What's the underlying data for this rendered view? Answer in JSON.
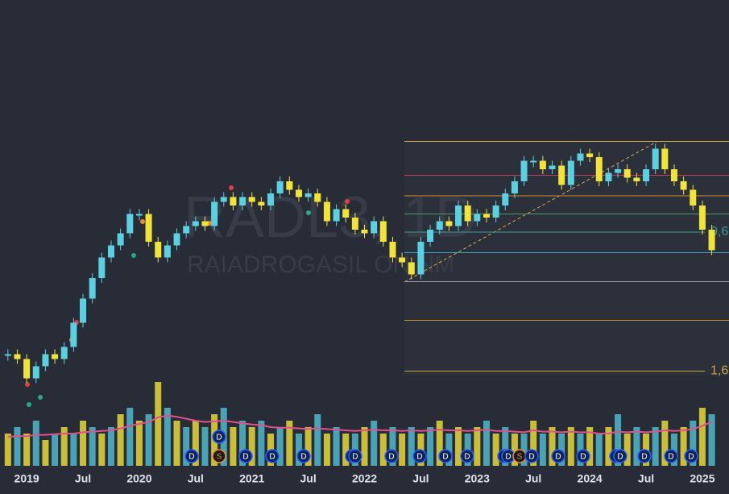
{
  "chart_data": {
    "type": "candle",
    "watermark": {
      "symbol": "RADL3, 1D",
      "name": "RAIADROGASIL ON NM"
    },
    "categories": [
      null,
      null,
      "2019",
      null,
      null,
      null,
      null,
      null,
      "Jul",
      null,
      null,
      null,
      null,
      null,
      "2020",
      null,
      null,
      null,
      null,
      null,
      "Jul",
      null,
      null,
      null,
      null,
      null,
      "2021",
      null,
      null,
      null,
      null,
      null,
      "Jul",
      null,
      null,
      null,
      null,
      null,
      "2022",
      null,
      null,
      null,
      null,
      null,
      "Jul",
      null,
      null,
      null,
      null,
      null,
      "2023",
      null,
      null,
      null,
      null,
      null,
      "Jul",
      null,
      null,
      null,
      null,
      null,
      "2024",
      null,
      null,
      null,
      null,
      null,
      "Jul",
      null,
      null,
      null,
      null,
      null,
      "2025",
      null
    ],
    "ylim": [
      0,
      40
    ],
    "series": [
      {
        "up_color": "#5ad0e0",
        "down_color": "#f2e33b",
        "values": [
          10.7,
          10.3,
          8.7,
          9.7,
          10.7,
          10.3,
          11.3,
          13.3,
          15.3,
          17,
          18.7,
          19.7,
          20.7,
          22.3,
          22.3,
          20,
          18.7,
          19.7,
          20.7,
          21.3,
          21.7,
          21.3,
          23.3,
          23.7,
          23,
          23.7,
          23.3,
          23,
          24,
          25,
          24.3,
          23.7,
          24,
          23.3,
          21.7,
          22.7,
          22,
          21,
          20.7,
          21.7,
          20,
          18.7,
          18.3,
          17.3,
          20,
          21,
          21.7,
          21.3,
          23,
          21.7,
          22.3,
          22,
          23,
          24,
          25,
          26.7,
          26.7,
          26,
          26.3,
          24.7,
          26.7,
          27.3,
          27,
          25,
          25.7,
          26,
          25.3,
          25,
          26,
          27.7,
          26,
          25,
          24.3,
          23,
          21,
          19.3
        ]
      },
      {
        "color": "#4fb8cc",
        "alt_color": "#e6d83a",
        "values": [
          5,
          6,
          5,
          7,
          4,
          5,
          6,
          5,
          7,
          6,
          5,
          6,
          8,
          9,
          7,
          8,
          13,
          9,
          7,
          6,
          7,
          6,
          8,
          9,
          6,
          7,
          6,
          7,
          5,
          6,
          7,
          5,
          6,
          8,
          5,
          6,
          5,
          5,
          6,
          7,
          5,
          6,
          5,
          6,
          5,
          6,
          7,
          5,
          6,
          5,
          6,
          7,
          5,
          6,
          5,
          5,
          7,
          5,
          6,
          5,
          6,
          5,
          6,
          5,
          6,
          8,
          5,
          6,
          5,
          6,
          7,
          5,
          6,
          7,
          9,
          8
        ]
      },
      {
        "color": "#e0508a",
        "values": [
          4.5,
          4.6,
          4.6,
          4.8,
          4.8,
          4.9,
          5,
          5,
          5.2,
          5.3,
          5.4,
          5.5,
          5.8,
          6.2,
          6.5,
          6.8,
          7.5,
          7.8,
          7.6,
          7.3,
          7,
          6.8,
          6.9,
          7,
          6.8,
          6.6,
          6.4,
          6.3,
          6,
          5.9,
          5.9,
          5.8,
          5.7,
          5.8,
          5.7,
          5.6,
          5.5,
          5.4,
          5.5,
          5.6,
          5.5,
          5.5,
          5.4,
          5.5,
          5.4,
          5.5,
          5.6,
          5.5,
          5.5,
          5.4,
          5.5,
          5.6,
          5.4,
          5.4,
          5.3,
          5.2,
          5.5,
          5.3,
          5.3,
          5.2,
          5.3,
          5.2,
          5.2,
          5,
          5,
          5.3,
          5.2,
          5.3,
          5.2,
          5.3,
          5.5,
          5.4,
          5.5,
          5.7,
          6.2,
          6.8
        ]
      }
    ],
    "volume_ylim": [
      0,
      15
    ],
    "fib_levels": [
      {
        "value": 28.3,
        "color": "#c9a640"
      },
      {
        "value": 25.5,
        "color": "#c0405a"
      },
      {
        "value": 23.8,
        "color": "#d08a30"
      },
      {
        "value": 22.3,
        "color": "#4a9a6a"
      },
      {
        "value": 20.8,
        "color": "#3a9a9a",
        "label": "0,6"
      },
      {
        "value": 19.1,
        "color": "#3aa0c0"
      },
      {
        "value": 16.7,
        "color": "#9a9aa8"
      },
      {
        "value": 13.5,
        "color": "#d08a30"
      },
      {
        "value": 9.3,
        "color": "#c9a640",
        "label": "1,6"
      }
    ],
    "events": [
      "D",
      "D",
      "S",
      "D",
      "D",
      "D",
      "D",
      "D",
      "D",
      "D",
      "D",
      "D",
      "D",
      "D",
      "S",
      "D",
      "D",
      "D",
      "D",
      "D",
      "D",
      "D",
      "D"
    ]
  }
}
